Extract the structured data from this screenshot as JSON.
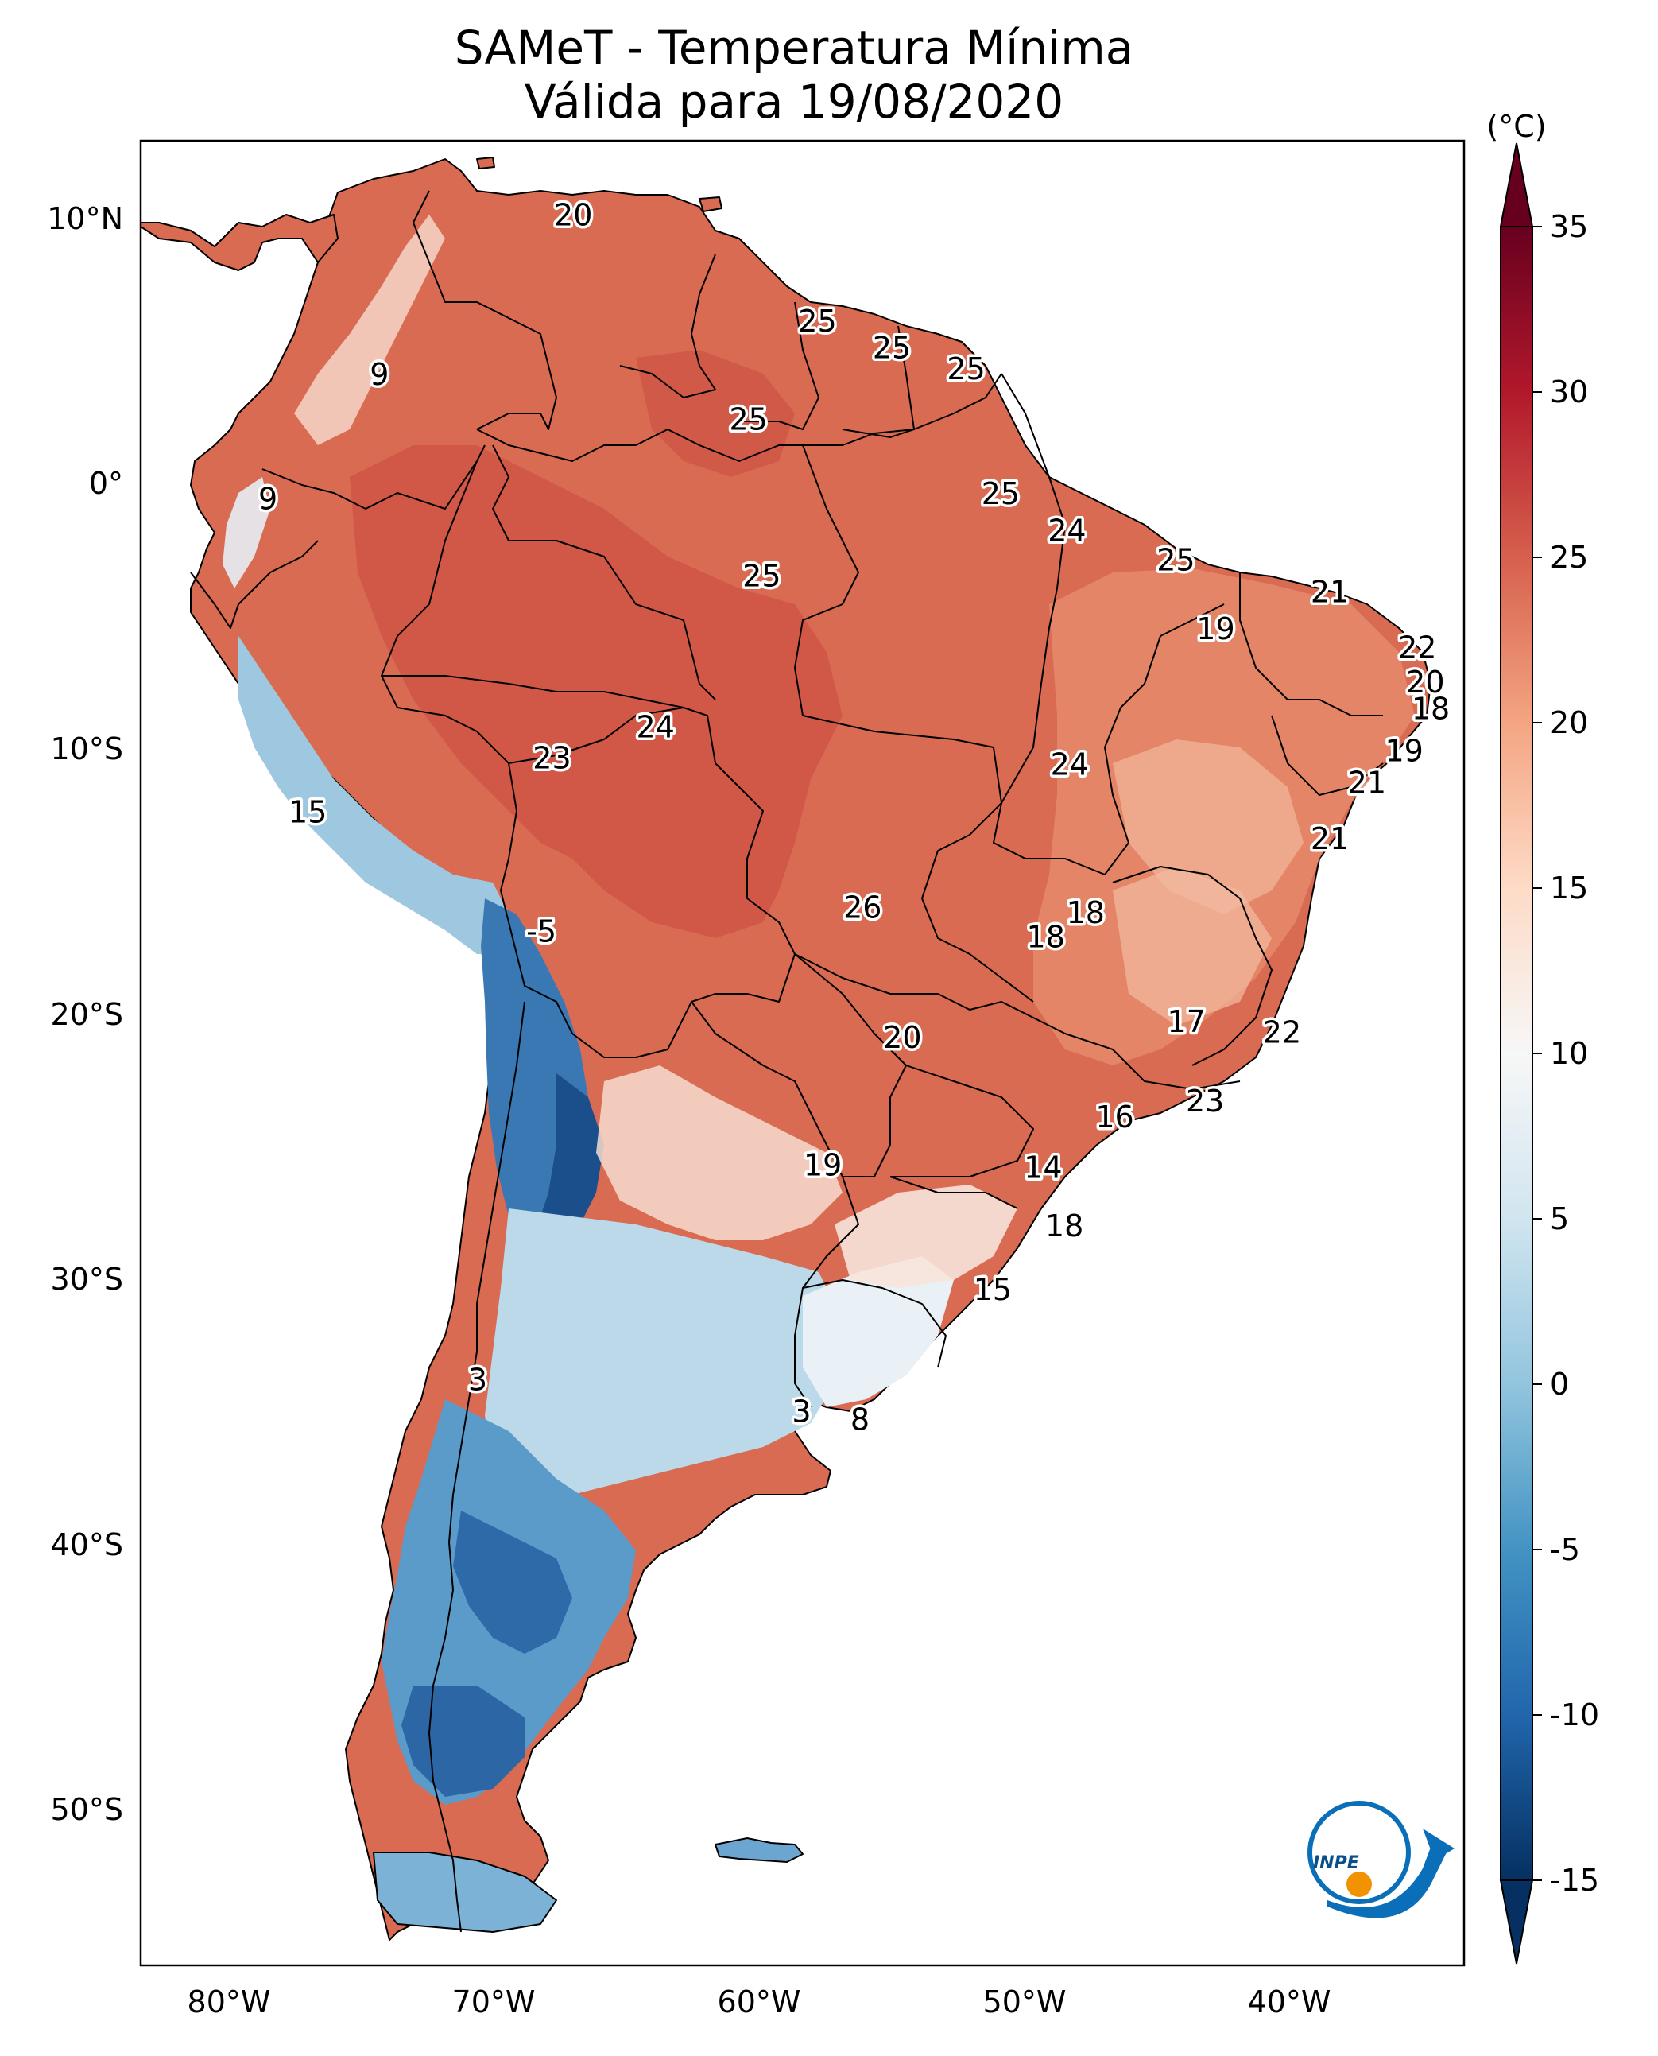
{
  "title": "SAMeT - Temperatura Mínima",
  "subtitle": "Válida para 19/08/2020",
  "colorbar": {
    "unit": "(°C)",
    "ticks": [
      "35",
      "30",
      "25",
      "20",
      "15",
      "10",
      "5",
      "0",
      "-5",
      "-10",
      "-15"
    ],
    "colors": [
      "#053061",
      "#2166ac",
      "#4393c3",
      "#92c5de",
      "#d1e5f0",
      "#f7f7f7",
      "#fddbc7",
      "#f4a582",
      "#d6604d",
      "#b2182b",
      "#67001f"
    ]
  },
  "axes": {
    "lat_labels": [
      "10°N",
      "0°",
      "10°S",
      "20°S",
      "30°S",
      "40°S",
      "50°S"
    ],
    "lon_labels": [
      "80°W",
      "70°W",
      "60°W",
      "50°W",
      "40°W"
    ]
  },
  "logo": {
    "text": "INPE"
  },
  "map_data": {
    "variable": "minimum temperature",
    "unit": "°C",
    "value_range": [
      -15,
      35
    ],
    "station_labels": [
      {
        "value": "20",
        "lon": -67.0,
        "lat": 10.5
      },
      {
        "value": "25",
        "lon": -57.8,
        "lat": 6.5
      },
      {
        "value": "25",
        "lon": -55.0,
        "lat": 5.5
      },
      {
        "value": "25",
        "lon": -52.2,
        "lat": 4.7
      },
      {
        "value": "9",
        "lon": -74.3,
        "lat": 4.5
      },
      {
        "value": "25",
        "lon": -60.4,
        "lat": 2.8
      },
      {
        "value": "9",
        "lon": -78.5,
        "lat": -0.2
      },
      {
        "value": "25",
        "lon": -50.9,
        "lat": 0.0
      },
      {
        "value": "24",
        "lon": -48.4,
        "lat": -1.4
      },
      {
        "value": "25",
        "lon": -59.9,
        "lat": -3.1
      },
      {
        "value": "25",
        "lon": -44.3,
        "lat": -2.5
      },
      {
        "value": "21",
        "lon": -38.5,
        "lat": -3.7
      },
      {
        "value": "19",
        "lon": -42.8,
        "lat": -5.1
      },
      {
        "value": "22",
        "lon": -35.2,
        "lat": -5.8
      },
      {
        "value": "20",
        "lon": -34.9,
        "lat": -7.1
      },
      {
        "value": "18",
        "lon": -34.7,
        "lat": -8.1
      },
      {
        "value": "24",
        "lon": -63.9,
        "lat": -8.8
      },
      {
        "value": "23",
        "lon": -67.8,
        "lat": -9.97
      },
      {
        "value": "24",
        "lon": -48.3,
        "lat": -10.2
      },
      {
        "value": "19",
        "lon": -35.7,
        "lat": -9.7
      },
      {
        "value": "21",
        "lon": -37.1,
        "lat": -10.9
      },
      {
        "value": "15",
        "lon": -77.0,
        "lat": -12.0
      },
      {
        "value": "21",
        "lon": -38.5,
        "lat": -13.0
      },
      {
        "value": "26",
        "lon": -56.1,
        "lat": -15.6
      },
      {
        "value": "18",
        "lon": -47.7,
        "lat": -15.8
      },
      {
        "value": "18",
        "lon": -49.2,
        "lat": -16.7
      },
      {
        "value": "-5",
        "lon": -68.2,
        "lat": -16.5
      },
      {
        "value": "20",
        "lon": -54.6,
        "lat": -20.5
      },
      {
        "value": "17",
        "lon": -43.9,
        "lat": -19.9
      },
      {
        "value": "22",
        "lon": -40.3,
        "lat": -20.3
      },
      {
        "value": "23",
        "lon": -43.2,
        "lat": -22.9
      },
      {
        "value": "16",
        "lon": -46.6,
        "lat": -23.5
      },
      {
        "value": "19",
        "lon": -57.6,
        "lat": -25.3
      },
      {
        "value": "14",
        "lon": -49.3,
        "lat": -25.4
      },
      {
        "value": "18",
        "lon": -48.5,
        "lat": -27.6
      },
      {
        "value": "15",
        "lon": -51.2,
        "lat": -30.0
      },
      {
        "value": "3",
        "lon": -70.6,
        "lat": -33.4
      },
      {
        "value": "3",
        "lon": -58.4,
        "lat": -34.6
      },
      {
        "value": "8",
        "lon": -56.2,
        "lat": -34.9
      }
    ]
  }
}
